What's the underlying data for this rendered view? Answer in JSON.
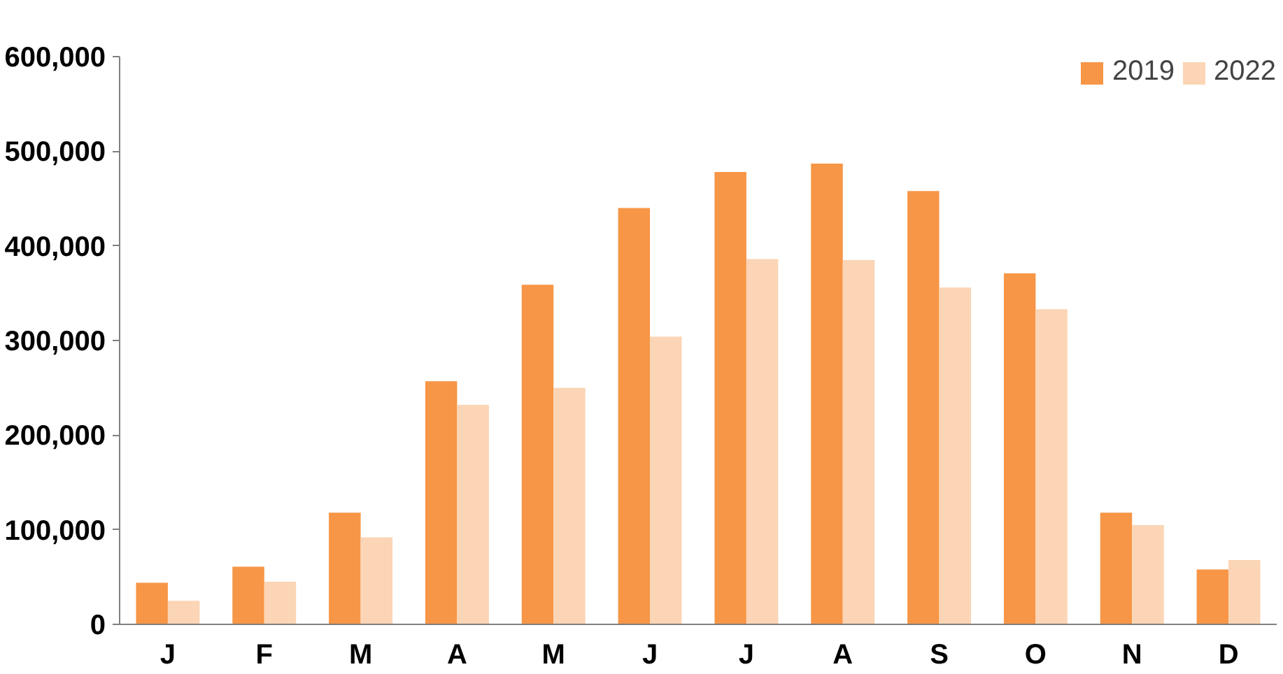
{
  "chart_data": {
    "type": "bar",
    "categories": [
      "J",
      "F",
      "M",
      "A",
      "M",
      "J",
      "J",
      "A",
      "S",
      "O",
      "N",
      "D"
    ],
    "series": [
      {
        "name": "2019",
        "color": "#f79646",
        "values": [
          44000,
          61000,
          118000,
          257000,
          359000,
          440000,
          478000,
          487000,
          458000,
          371000,
          118000,
          58000
        ]
      },
      {
        "name": "2022",
        "color": "#fbd5b5",
        "values": [
          25000,
          45000,
          92000,
          232000,
          250000,
          304000,
          386000,
          385000,
          356000,
          333000,
          105000,
          68000
        ]
      }
    ],
    "ylim": [
      0,
      600000
    ],
    "yticks": [
      {
        "value": 0,
        "label": "0"
      },
      {
        "value": 100000,
        "label": "100,000"
      },
      {
        "value": 200000,
        "label": "200,000"
      },
      {
        "value": 300000,
        "label": "300,000"
      },
      {
        "value": 400000,
        "label": "400,000"
      },
      {
        "value": 500000,
        "label": "500,000"
      },
      {
        "value": 600000,
        "label": "600,000"
      }
    ],
    "grid": false,
    "legend": "top right"
  }
}
